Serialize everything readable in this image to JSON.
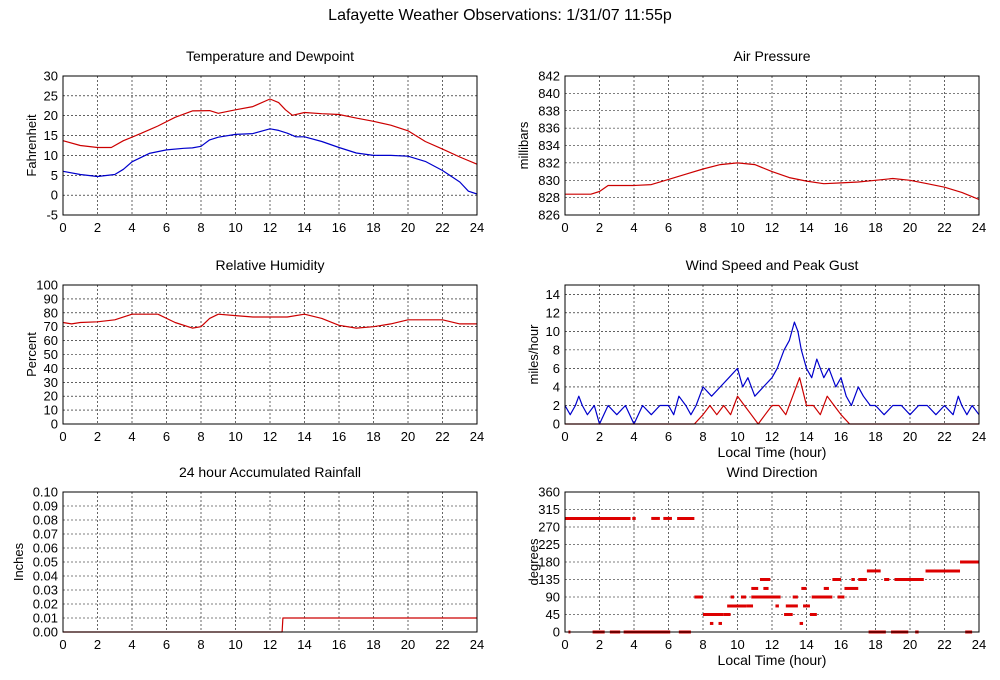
{
  "title": "Lafayette Weather Observations: 1/31/07 11:55p",
  "chart_data": [
    {
      "id": "temp",
      "type": "line",
      "title": "Temperature and Dewpoint",
      "xlabel": "",
      "ylabel": "Fahrenheit",
      "xlim": [
        0,
        24
      ],
      "ylim": [
        -5,
        30
      ],
      "xticks": [
        0,
        2,
        4,
        6,
        8,
        10,
        12,
        14,
        16,
        18,
        20,
        22,
        24
      ],
      "yticks": [
        -5,
        0,
        5,
        10,
        15,
        20,
        25,
        30
      ],
      "grid": true,
      "series": [
        {
          "color": "#cc0000",
          "x": [
            0,
            1,
            2,
            2.8,
            3.5,
            4.5,
            5.5,
            6.5,
            7.5,
            8.5,
            9,
            10,
            11,
            12,
            12.5,
            12.9,
            13.3,
            14,
            15,
            16,
            17,
            18,
            19,
            20,
            21,
            22,
            23,
            24
          ],
          "y": [
            13.7,
            12.5,
            12,
            12,
            13.7,
            15.5,
            17.4,
            19.6,
            21.2,
            21.3,
            20.6,
            21.5,
            22.3,
            24.2,
            23.3,
            21.5,
            20.1,
            20.8,
            20.5,
            20.3,
            19.4,
            18.6,
            17.6,
            16.2,
            13.5,
            11.6,
            9.6,
            7.8
          ]
        },
        {
          "color": "#0000cc",
          "x": [
            0,
            1,
            2,
            3,
            3.5,
            4,
            5,
            6,
            7,
            7.5,
            8,
            8.5,
            9,
            10,
            11,
            12,
            12.5,
            13,
            13.5,
            14,
            15,
            16,
            17,
            18,
            19,
            20,
            21,
            22,
            23,
            23.5,
            24
          ],
          "y": [
            6,
            5.2,
            4.7,
            5.2,
            6.5,
            8.4,
            10.5,
            11.4,
            11.8,
            11.9,
            12.3,
            13.9,
            14.6,
            15.3,
            15.5,
            16.7,
            16.3,
            15.6,
            14.7,
            14.7,
            13.5,
            12,
            10.6,
            10,
            10,
            9.8,
            8.5,
            6.2,
            3.3,
            1,
            0.3
          ]
        }
      ]
    },
    {
      "id": "pressure",
      "type": "line",
      "title": "Air Pressure",
      "xlabel": "",
      "ylabel": "millibars",
      "xlim": [
        0,
        24
      ],
      "ylim": [
        826,
        842
      ],
      "xticks": [
        0,
        2,
        4,
        6,
        8,
        10,
        12,
        14,
        16,
        18,
        20,
        22,
        24
      ],
      "yticks": [
        826,
        828,
        830,
        832,
        834,
        836,
        838,
        840,
        842
      ],
      "grid": true,
      "series": [
        {
          "color": "#cc0000",
          "x": [
            0,
            1.5,
            2,
            2.5,
            3,
            4,
            5,
            6,
            7,
            8,
            9,
            10,
            11,
            12,
            13,
            14,
            15,
            16,
            17,
            18,
            19,
            20,
            21,
            22,
            23,
            24
          ],
          "y": [
            828.4,
            828.4,
            828.7,
            829.4,
            829.4,
            829.4,
            829.5,
            830.1,
            830.7,
            831.3,
            831.8,
            832,
            831.8,
            831,
            830.3,
            829.9,
            829.6,
            829.7,
            829.8,
            830,
            830.2,
            830,
            829.6,
            829.2,
            828.6,
            827.8
          ]
        }
      ]
    },
    {
      "id": "humidity",
      "type": "line",
      "title": "Relative Humidity",
      "xlabel": "",
      "ylabel": "Percent",
      "xlim": [
        0,
        24
      ],
      "ylim": [
        0,
        100
      ],
      "xticks": [
        0,
        2,
        4,
        6,
        8,
        10,
        12,
        14,
        16,
        18,
        20,
        22,
        24
      ],
      "yticks": [
        0,
        10,
        20,
        30,
        40,
        50,
        60,
        70,
        80,
        90,
        100
      ],
      "grid": true,
      "series": [
        {
          "color": "#cc0000",
          "x": [
            0,
            0.5,
            1,
            2,
            3,
            4,
            5,
            5.5,
            6.5,
            7.5,
            8,
            8.5,
            9,
            10,
            11,
            12,
            13,
            14,
            15,
            16,
            17,
            18,
            19,
            20,
            21,
            22,
            23,
            24
          ],
          "y": [
            73,
            72,
            73,
            73.5,
            75,
            79,
            79,
            79,
            73,
            69,
            70,
            76,
            79,
            78,
            77,
            77,
            77,
            79,
            76,
            71,
            69,
            70,
            72,
            75,
            75,
            75,
            72,
            72
          ]
        }
      ]
    },
    {
      "id": "wind",
      "type": "line",
      "title": "Wind Speed and Peak Gust",
      "xlabel": "Local Time (hour)",
      "ylabel": "miles/hour",
      "xlim": [
        0,
        24
      ],
      "ylim": [
        0,
        15
      ],
      "xticks": [
        0,
        2,
        4,
        6,
        8,
        10,
        12,
        14,
        16,
        18,
        20,
        22,
        24
      ],
      "yticks": [
        0,
        2,
        4,
        6,
        8,
        10,
        12,
        14
      ],
      "grid": true,
      "series": [
        {
          "color": "#0000cc",
          "x": [
            0,
            0.3,
            0.6,
            0.8,
            1,
            1.3,
            1.7,
            2,
            2.5,
            3,
            3.5,
            4,
            4.5,
            5,
            5.5,
            6,
            6.3,
            6.6,
            7,
            7.3,
            7.6,
            8,
            8.5,
            9,
            9.5,
            10,
            10.3,
            10.6,
            11,
            11.5,
            12,
            12.3,
            12.7,
            13,
            13.3,
            13.5,
            13.7,
            14,
            14.3,
            14.6,
            15,
            15.3,
            15.7,
            16,
            16.3,
            16.6,
            17,
            17.3,
            17.7,
            18,
            18.5,
            19,
            19.5,
            20,
            20.5,
            21,
            21.5,
            22,
            22.5,
            22.8,
            23,
            23.3,
            23.6,
            24
          ],
          "y": [
            2,
            1,
            2,
            3,
            2,
            1,
            2,
            0,
            2,
            1,
            2,
            0,
            2,
            1,
            2,
            2,
            1,
            3,
            2,
            1,
            2,
            4,
            3,
            4,
            5,
            6,
            4,
            5,
            3,
            4,
            5,
            6,
            8,
            9,
            11,
            10,
            8,
            6,
            5,
            7,
            5,
            6,
            4,
            5,
            3,
            2,
            4,
            3,
            2,
            2,
            1,
            2,
            2,
            1,
            2,
            2,
            1,
            2,
            1,
            3,
            2,
            1,
            2,
            1
          ]
        },
        {
          "color": "#cc0000",
          "x": [
            0,
            7.5,
            8,
            8.4,
            8.8,
            9.2,
            9.6,
            10,
            10.4,
            10.8,
            11.2,
            11.6,
            12,
            12.4,
            12.8,
            13.2,
            13.6,
            14,
            14.4,
            14.8,
            15.2,
            15.6,
            16,
            16.5,
            17,
            24
          ],
          "y": [
            0,
            0,
            1,
            2,
            1,
            2,
            1,
            3,
            2,
            1,
            0,
            1,
            2,
            2,
            1,
            3,
            5,
            2,
            2,
            1,
            3,
            2,
            1,
            0,
            0,
            0
          ]
        }
      ]
    },
    {
      "id": "rain",
      "type": "line",
      "title": "24 hour Accumulated Rainfall",
      "xlabel": "",
      "ylabel": "Inches",
      "xlim": [
        0,
        24
      ],
      "ylim": [
        0,
        0.1
      ],
      "xticks": [
        0,
        2,
        4,
        6,
        8,
        10,
        12,
        14,
        16,
        18,
        20,
        22,
        24
      ],
      "yticks": [
        0,
        0.01,
        0.02,
        0.03,
        0.04,
        0.05,
        0.06,
        0.07,
        0.08,
        0.09,
        0.1
      ],
      "yticklabels": [
        "0.00",
        "0.01",
        "0.02",
        "0.03",
        "0.04",
        "0.05",
        "0.06",
        "0.07",
        "0.08",
        "0.09",
        "0.10"
      ],
      "grid": true,
      "series": [
        {
          "color": "#cc0000",
          "x": [
            0,
            12.7,
            12.75,
            24
          ],
          "y": [
            0,
            0,
            0.01,
            0.01
          ]
        }
      ]
    },
    {
      "id": "direction",
      "type": "scatter",
      "title": "Wind Direction",
      "xlabel": "Local Time (hour)",
      "ylabel": "degrees",
      "xlim": [
        0,
        24
      ],
      "ylim": [
        0,
        360
      ],
      "xticks": [
        0,
        2,
        4,
        6,
        8,
        10,
        12,
        14,
        16,
        18,
        20,
        22,
        24
      ],
      "yticks": [
        0,
        45,
        90,
        135,
        180,
        225,
        270,
        315,
        360
      ],
      "grid": true,
      "segments": [
        {
          "x0": 0,
          "x1": 3.8,
          "y": 292
        },
        {
          "x0": 3.9,
          "x1": 4.1,
          "y": 292
        },
        {
          "x0": 5,
          "x1": 5.5,
          "y": 292
        },
        {
          "x0": 5.7,
          "x1": 6.2,
          "y": 292
        },
        {
          "x0": 6.5,
          "x1": 7.5,
          "y": 292
        },
        {
          "x0": 0.2,
          "x1": 0.3,
          "y": 0
        },
        {
          "x0": 1.6,
          "x1": 2.3,
          "y": 0
        },
        {
          "x0": 2.6,
          "x1": 3.2,
          "y": 0
        },
        {
          "x0": 3.4,
          "x1": 6.1,
          "y": 0
        },
        {
          "x0": 6.6,
          "x1": 7.3,
          "y": 0
        },
        {
          "x0": 7.5,
          "x1": 8,
          "y": 90
        },
        {
          "x0": 8,
          "x1": 9.2,
          "y": 45
        },
        {
          "x0": 8.4,
          "x1": 8.6,
          "y": 22
        },
        {
          "x0": 8.9,
          "x1": 9.1,
          "y": 22
        },
        {
          "x0": 9.2,
          "x1": 9.6,
          "y": 45
        },
        {
          "x0": 9.4,
          "x1": 10.5,
          "y": 67
        },
        {
          "x0": 9.6,
          "x1": 9.8,
          "y": 90
        },
        {
          "x0": 10.2,
          "x1": 10.5,
          "y": 90
        },
        {
          "x0": 10.5,
          "x1": 10.9,
          "y": 67
        },
        {
          "x0": 10.8,
          "x1": 11.2,
          "y": 112
        },
        {
          "x0": 10.8,
          "x1": 12,
          "y": 90
        },
        {
          "x0": 11.3,
          "x1": 11.9,
          "y": 135
        },
        {
          "x0": 11.5,
          "x1": 11.8,
          "y": 112
        },
        {
          "x0": 12,
          "x1": 12.5,
          "y": 90
        },
        {
          "x0": 12.2,
          "x1": 12.4,
          "y": 67
        },
        {
          "x0": 12.7,
          "x1": 13.2,
          "y": 45
        },
        {
          "x0": 12.8,
          "x1": 13.5,
          "y": 67
        },
        {
          "x0": 13.2,
          "x1": 13.5,
          "y": 90
        },
        {
          "x0": 13.6,
          "x1": 13.8,
          "y": 22
        },
        {
          "x0": 13.7,
          "x1": 14,
          "y": 112
        },
        {
          "x0": 13.8,
          "x1": 14.2,
          "y": 67
        },
        {
          "x0": 14.2,
          "x1": 14.6,
          "y": 45
        },
        {
          "x0": 14.3,
          "x1": 15.5,
          "y": 90
        },
        {
          "x0": 15,
          "x1": 15.3,
          "y": 112
        },
        {
          "x0": 15.5,
          "x1": 16,
          "y": 135
        },
        {
          "x0": 15.8,
          "x1": 16.2,
          "y": 90
        },
        {
          "x0": 16.2,
          "x1": 17,
          "y": 112
        },
        {
          "x0": 16.6,
          "x1": 16.8,
          "y": 135
        },
        {
          "x0": 17,
          "x1": 17.5,
          "y": 135
        },
        {
          "x0": 17.5,
          "x1": 18.3,
          "y": 157
        },
        {
          "x0": 17.6,
          "x1": 18.6,
          "y": 0
        },
        {
          "x0": 18.5,
          "x1": 18.8,
          "y": 135
        },
        {
          "x0": 18.9,
          "x1": 19.9,
          "y": 0
        },
        {
          "x0": 19.1,
          "x1": 20.8,
          "y": 135
        },
        {
          "x0": 20.3,
          "x1": 20.5,
          "y": 0
        },
        {
          "x0": 20.9,
          "x1": 22.9,
          "y": 157
        },
        {
          "x0": 22.9,
          "x1": 24,
          "y": 180
        },
        {
          "x0": 23.2,
          "x1": 23.6,
          "y": 0
        }
      ]
    }
  ]
}
